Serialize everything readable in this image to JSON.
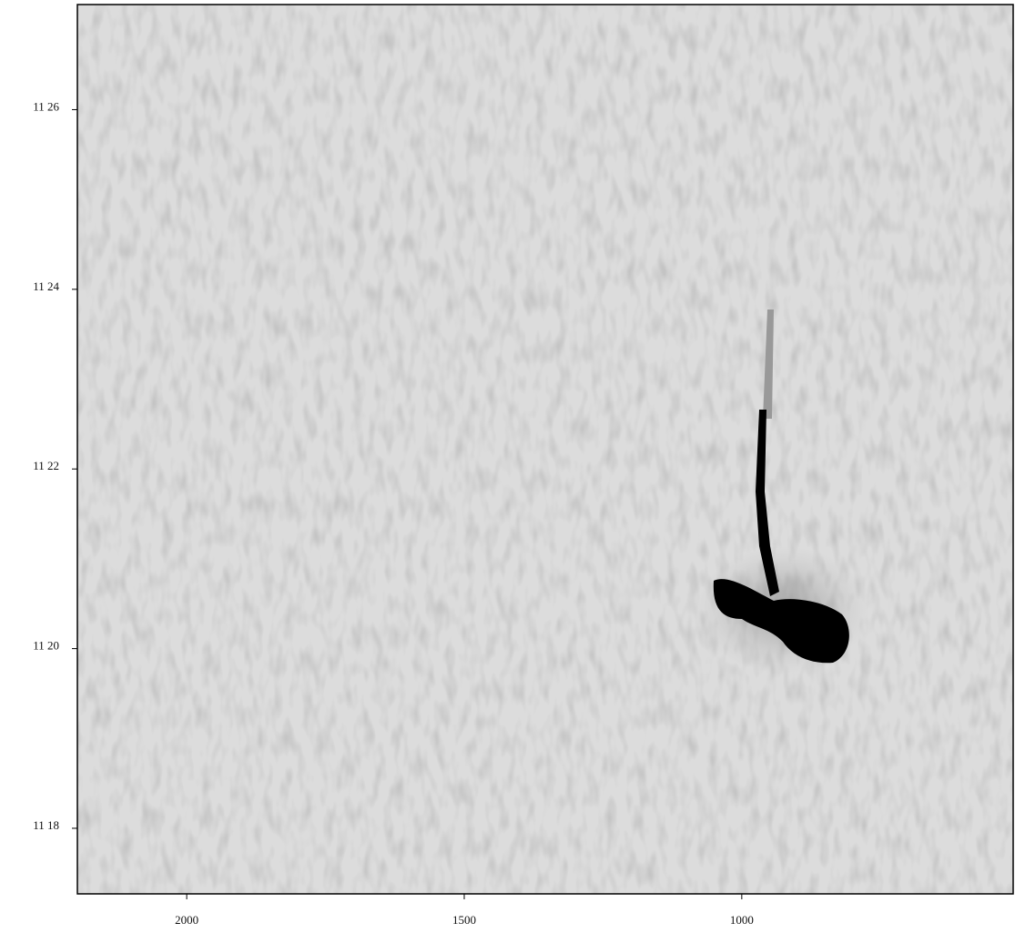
{
  "chart_data": {
    "type": "image",
    "xlim": [
      2197,
      511
    ],
    "xticks": [
      2000,
      1500,
      1000
    ],
    "ylim": [
      677.27,
      687.17
    ],
    "yticks": [
      {
        "value": 686,
        "label": "11 26"
      },
      {
        "value": 684,
        "label": "11 24"
      },
      {
        "value": 682,
        "label": "11 22"
      },
      {
        "value": 680,
        "label": "11 20"
      },
      {
        "value": 678,
        "label": "11 18"
      }
    ]
  }
}
